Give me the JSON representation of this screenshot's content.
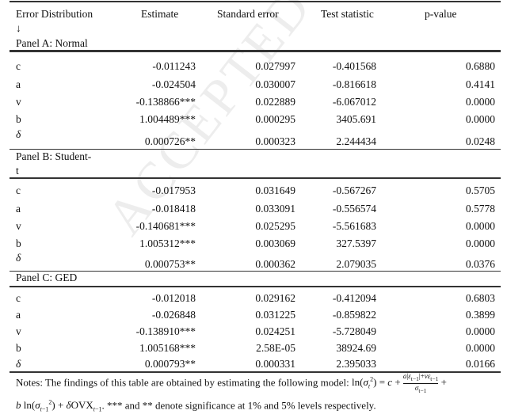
{
  "watermark": "ACCEPTED MANUSCRIPT",
  "header": {
    "col1": "Error Distribution",
    "col1_arrow": "↓",
    "col2": "Estimate",
    "col3": "Standard error",
    "col4": "Test statistic",
    "col5": "p-value"
  },
  "panels": [
    {
      "title": "Panel A: Normal",
      "rows": [
        {
          "param": "c",
          "estimate": "-0.011243",
          "se": "0.027997",
          "stat": "-0.401568",
          "p": "0.6880"
        },
        {
          "param": "a",
          "estimate": "-0.024504",
          "se": "0.030007",
          "stat": "-0.816618",
          "p": "0.4141"
        },
        {
          "param": "v",
          "estimate": "-0.138866***",
          "se": "0.022889",
          "stat": "-6.067012",
          "p": "0.0000"
        },
        {
          "param": "b",
          "estimate": "1.004489***",
          "se": "0.000295",
          "stat": "3405.691",
          "p": "0.0000"
        },
        {
          "param": "δ",
          "estimate": "0.000726**",
          "se": "0.000323",
          "stat": "2.244434",
          "p": "0.0248"
        }
      ]
    },
    {
      "title": "Panel B: Student-",
      "title2": "t",
      "rows": [
        {
          "param": "c",
          "estimate": "-0.017953",
          "se": "0.031649",
          "stat": "-0.567267",
          "p": "0.5705"
        },
        {
          "param": "a",
          "estimate": "-0.018418",
          "se": "0.033091",
          "stat": "-0.556574",
          "p": "0.5778"
        },
        {
          "param": "v",
          "estimate": "-0.140681***",
          "se": "0.025295",
          "stat": "-5.561683",
          "p": "0.0000"
        },
        {
          "param": "b",
          "estimate": "1.005312***",
          "se": "0.003069",
          "stat": "327.5397",
          "p": "0.0000"
        },
        {
          "param": "δ",
          "estimate": "0.000753**",
          "se": "0.000362",
          "stat": "2.079035",
          "p": "0.0376"
        }
      ]
    },
    {
      "title": "Panel C: GED",
      "rows": [
        {
          "param": "c",
          "estimate": "-0.012018",
          "se": "0.029162",
          "stat": "-0.412094",
          "p": "0.6803"
        },
        {
          "param": "a",
          "estimate": "-0.026848",
          "se": "0.031225",
          "stat": "-0.859822",
          "p": "0.3899"
        },
        {
          "param": "v",
          "estimate": "-0.138910***",
          "se": "0.024251",
          "stat": "-5.728049",
          "p": "0.0000"
        },
        {
          "param": "b",
          "estimate": "1.005168***",
          "se": "2.58E-05",
          "stat": "38924.69",
          "p": "0.0000"
        },
        {
          "param": "δ",
          "estimate": "0.000793**",
          "se": "0.000331",
          "stat": "2.395033",
          "p": "0.0166"
        }
      ]
    }
  ],
  "notes": {
    "line1_prefix": "Notes: The findings of this table are obtained by estimating the following model: ",
    "line2_suffix": ". *** and ** denote significance at 1% and 5% levels respectively."
  }
}
